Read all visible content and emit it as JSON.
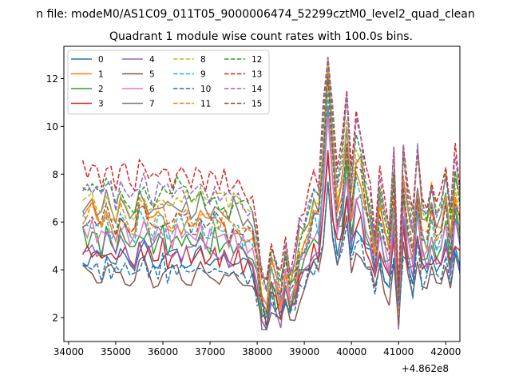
{
  "figure": {
    "suptitle": "n file: modeM0/AS1C09_011T05_9000006474_52299cztM0_level2_quad_clean",
    "offset_label": "+4.862e8"
  },
  "chart_data": {
    "type": "line",
    "title": "Quadrant 1 module wise count rates with 100.0s bins.",
    "xlabel": "",
    "ylabel": "",
    "xlim": [
      33900,
      42300
    ],
    "ylim": [
      1.0,
      13.35
    ],
    "x_offset": 486200000,
    "x_ticks": [
      34000,
      35000,
      36000,
      37000,
      38000,
      39000,
      40000,
      41000,
      42000
    ],
    "x_tick_labels": [
      "34000",
      "35000",
      "36000",
      "37000",
      "38000",
      "39000",
      "40000",
      "41000",
      "42000"
    ],
    "y_ticks": [
      2,
      4,
      6,
      8,
      10,
      12
    ],
    "y_tick_labels": [
      "2",
      "4",
      "6",
      "8",
      "10",
      "12"
    ],
    "grid": false,
    "legend": {
      "placement": "top-left",
      "columns": 4
    },
    "x_start": 34300,
    "x_step": 100,
    "shape": [
      0.62,
      0.61,
      0.63,
      0.6,
      0.58,
      0.62,
      0.6,
      0.57,
      0.63,
      0.61,
      0.59,
      0.56,
      0.62,
      0.64,
      0.6,
      0.58,
      0.61,
      0.63,
      0.59,
      0.57,
      0.62,
      0.6,
      0.61,
      0.58,
      0.6,
      0.62,
      0.57,
      0.59,
      0.61,
      0.58,
      0.6,
      0.56,
      0.59,
      0.57,
      0.56,
      0.55,
      0.52,
      0.45,
      0.32,
      0.27,
      0.4,
      0.36,
      0.3,
      0.42,
      0.33,
      0.37,
      0.48,
      0.52,
      0.56,
      0.62,
      0.6,
      0.82,
      1.15,
      0.85,
      0.62,
      0.72,
      0.9,
      0.63,
      0.8,
      0.76,
      0.64,
      0.58,
      0.46,
      0.64,
      0.54,
      0.48,
      0.7,
      0.26,
      0.74,
      0.58,
      0.5,
      0.72,
      0.55,
      0.5,
      0.62,
      0.54,
      0.56,
      0.67,
      0.52,
      0.7,
      0.6,
      0.76,
      0.54,
      0.64
    ],
    "series": [
      {
        "name": "0",
        "color": "#1f77b4",
        "dash": "solid",
        "base": 4.5,
        "amp": 4.8
      },
      {
        "name": "1",
        "color": "#ff7f0e",
        "dash": "solid",
        "base": 6.0,
        "amp": 7.2
      },
      {
        "name": "2",
        "color": "#2ca02c",
        "dash": "solid",
        "base": 5.2,
        "amp": 6.2
      },
      {
        "name": "3",
        "color": "#d62728",
        "dash": "solid",
        "base": 4.6,
        "amp": 5.0
      },
      {
        "name": "4",
        "color": "#9467bd",
        "dash": "solid",
        "base": 4.9,
        "amp": 6.8
      },
      {
        "name": "5",
        "color": "#8c564b",
        "dash": "solid",
        "base": 3.8,
        "amp": 4.4
      },
      {
        "name": "6",
        "color": "#e377c2",
        "dash": "solid",
        "base": 5.3,
        "amp": 5.8
      },
      {
        "name": "7",
        "color": "#7f7f7f",
        "dash": "solid",
        "base": 6.6,
        "amp": 6.6
      },
      {
        "name": "8",
        "color": "#bcbd22",
        "dash": "dashed",
        "base": 6.9,
        "amp": 7.6
      },
      {
        "name": "9",
        "color": "#17becf",
        "dash": "dashed",
        "base": 5.8,
        "amp": 6.4
      },
      {
        "name": "10",
        "color": "#1f77b4",
        "dash": "dashed",
        "base": 4.0,
        "amp": 4.2
      },
      {
        "name": "11",
        "color": "#ff7f0e",
        "dash": "dashed",
        "base": 6.2,
        "amp": 7.0
      },
      {
        "name": "12",
        "color": "#2ca02c",
        "dash": "dashed",
        "base": 7.1,
        "amp": 7.8
      },
      {
        "name": "13",
        "color": "#d62728",
        "dash": "dashed",
        "base": 7.8,
        "amp": 8.6
      },
      {
        "name": "14",
        "color": "#9467bd",
        "dash": "dashed",
        "base": 7.3,
        "amp": 8.2
      },
      {
        "name": "15",
        "color": "#8c564b",
        "dash": "dashed",
        "base": 6.0,
        "amp": 6.9
      }
    ]
  }
}
